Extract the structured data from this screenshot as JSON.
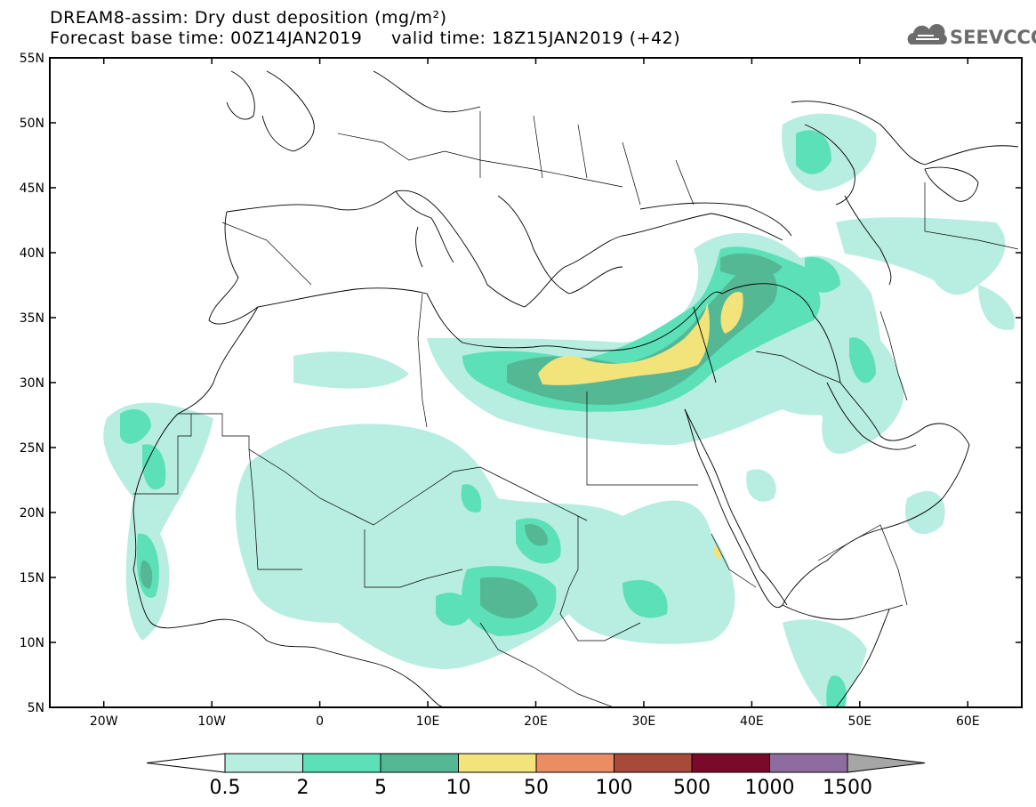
{
  "title": {
    "line1": "DREAM8-assim: Dry dust deposition (mg/m²)",
    "line2": "Forecast base time: 00Z14JAN2019     valid time: 18Z15JAN2019 (+42)"
  },
  "logo": {
    "text": "SEEVCCC",
    "icon": "cloud-logo-icon"
  },
  "map": {
    "lon_range": [
      -25,
      65
    ],
    "lat_range": [
      5,
      55
    ],
    "lat_ticks": [
      {
        "value": 55,
        "label": "55N"
      },
      {
        "value": 50,
        "label": "50N"
      },
      {
        "value": 45,
        "label": "45N"
      },
      {
        "value": 40,
        "label": "40N"
      },
      {
        "value": 35,
        "label": "35N"
      },
      {
        "value": 30,
        "label": "30N"
      },
      {
        "value": 25,
        "label": "25N"
      },
      {
        "value": 20,
        "label": "20N"
      },
      {
        "value": 15,
        "label": "15N"
      },
      {
        "value": 10,
        "label": "10N"
      },
      {
        "value": 5,
        "label": "5N"
      }
    ],
    "lon_ticks": [
      {
        "value": -20,
        "label": "20W"
      },
      {
        "value": -10,
        "label": "10W"
      },
      {
        "value": 0,
        "label": "0"
      },
      {
        "value": 10,
        "label": "10E"
      },
      {
        "value": 20,
        "label": "20E"
      },
      {
        "value": 30,
        "label": "30E"
      },
      {
        "value": 40,
        "label": "40E"
      },
      {
        "value": 50,
        "label": "50E"
      },
      {
        "value": 60,
        "label": "60E"
      }
    ]
  },
  "legend": {
    "colors": [
      "#ffffff",
      "#b8ede1",
      "#5ce0b8",
      "#55b895",
      "#f2e47a",
      "#ea8d63",
      "#a84a3a",
      "#7a0a2a",
      "#8f6ca0",
      "#a6a6a6"
    ],
    "labels": [
      "0.5",
      "2",
      "5",
      "10",
      "50",
      "100",
      "500",
      "1000",
      "1500"
    ]
  }
}
